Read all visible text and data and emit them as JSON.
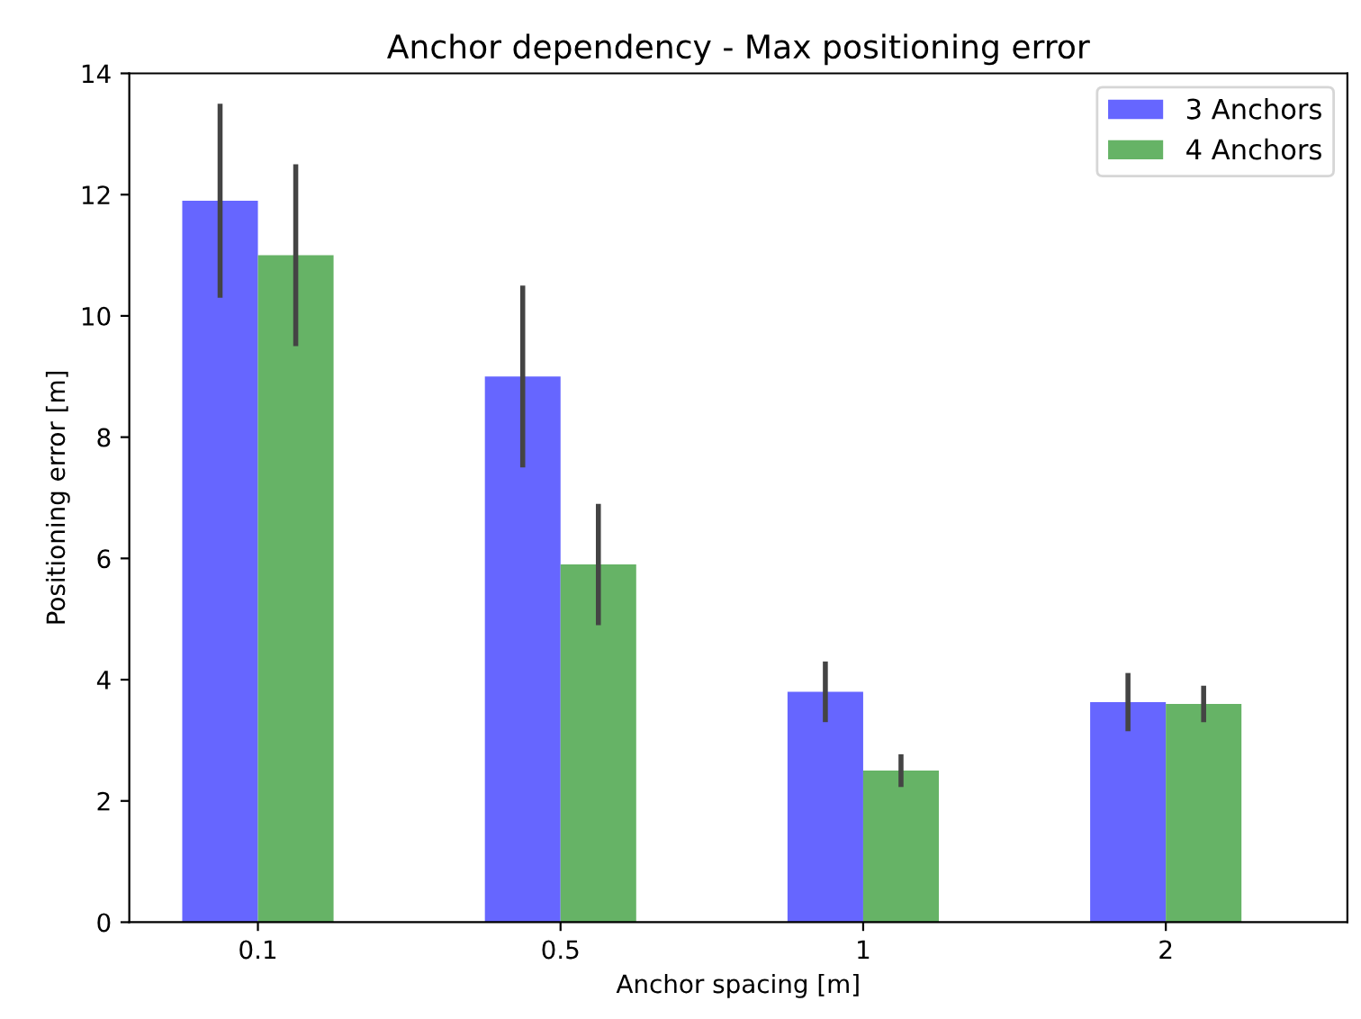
{
  "chart_data": {
    "type": "bar",
    "title": "Anchor dependency - Max positioning error",
    "xlabel": "Anchor spacing [m]",
    "ylabel": "Positioning error [m]",
    "categories": [
      "0.1",
      "0.5",
      "1",
      "2"
    ],
    "series": [
      {
        "name": "3 Anchors",
        "color": "#6666ff",
        "values": [
          11.9,
          9.0,
          3.8,
          3.63
        ],
        "errors": [
          1.6,
          1.5,
          0.5,
          0.48
        ]
      },
      {
        "name": "4 Anchors",
        "color": "#66b366",
        "values": [
          11.0,
          5.9,
          2.5,
          3.6
        ],
        "errors": [
          1.5,
          1.0,
          0.27,
          0.3
        ]
      }
    ],
    "ylim": [
      0,
      14
    ],
    "yticks": [
      0,
      2,
      4,
      6,
      8,
      10,
      12,
      14
    ],
    "legend": "top right",
    "grid": false
  }
}
